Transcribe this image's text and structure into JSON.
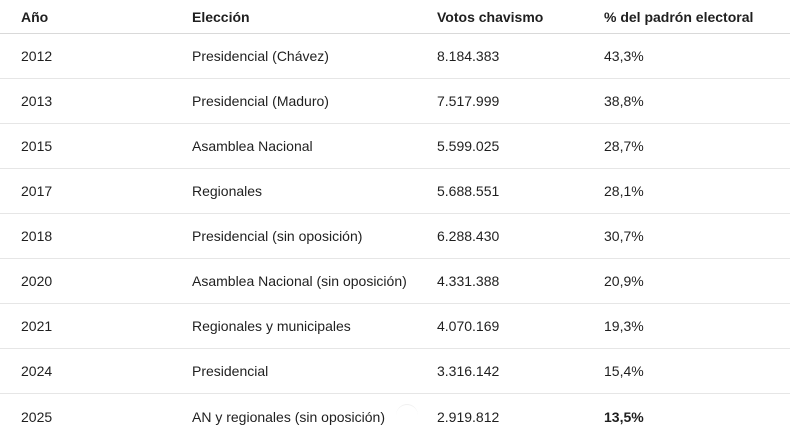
{
  "table": {
    "headers": [
      "Año",
      "Elección",
      "Votos chavismo",
      "% del padrón electoral"
    ],
    "rows": [
      [
        "2012",
        "Presidencial (Chávez)",
        "8.184.383",
        "43,3%"
      ],
      [
        "2013",
        "Presidencial (Maduro)",
        "7.517.999",
        "38,8%"
      ],
      [
        "2015",
        "Asamblea Nacional",
        "5.599.025",
        "28,7%"
      ],
      [
        "2017",
        "Regionales",
        "5.688.551",
        "28,1%"
      ],
      [
        "2018",
        "Presidencial (sin oposición)",
        "6.288.430",
        "30,7%"
      ],
      [
        "2020",
        "Asamblea Nacional (sin oposición)",
        "4.331.388",
        "20,9%"
      ],
      [
        "2021",
        "Regionales y municipales",
        "4.070.169",
        "19,3%"
      ],
      [
        "2024",
        "Presidencial",
        "3.316.142",
        "15,4%"
      ],
      [
        "2025",
        "AN y regionales (sin oposición)",
        "2.919.812",
        "13,5%"
      ]
    ]
  }
}
